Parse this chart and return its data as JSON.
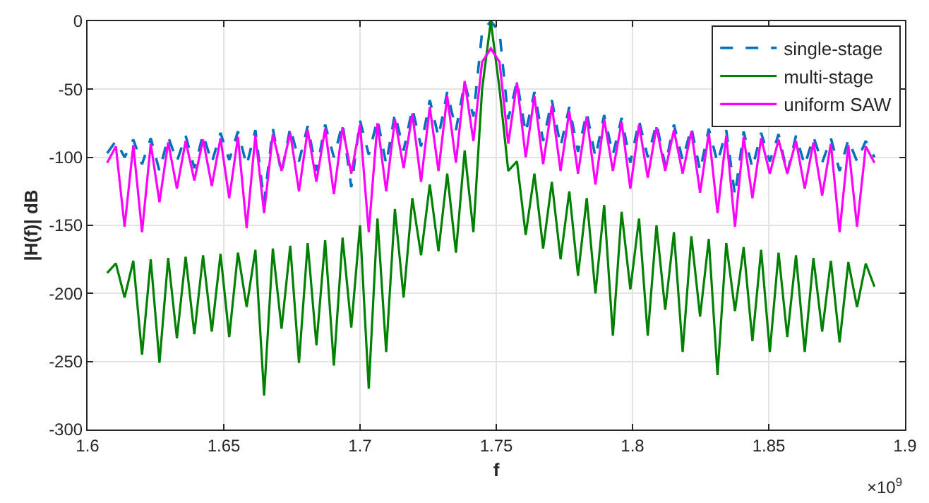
{
  "chart_data": {
    "type": "line",
    "xlabel": "f",
    "ylabel": "|H(f)| dB",
    "annotations": [
      "×10$^{9}$"
    ],
    "xlim": [
      1.6,
      1.9
    ],
    "xticks": [
      1.6,
      1.65,
      1.7,
      1.75,
      1.8,
      1.85,
      1.9
    ],
    "ylim": [
      -300,
      0
    ],
    "yticks": [
      -300,
      -250,
      -200,
      -150,
      -100,
      -50,
      0
    ],
    "grid": true,
    "legend": "top right",
    "marker": "none",
    "x": [
      1.6072,
      1.6104,
      1.6136,
      1.6168,
      1.62,
      1.6232,
      1.6264,
      1.6296,
      1.6328,
      1.636,
      1.6392,
      1.6424,
      1.6456,
      1.6488,
      1.652,
      1.6552,
      1.6584,
      1.6616,
      1.6648,
      1.668,
      1.6712,
      1.6744,
      1.6776,
      1.6808,
      1.684,
      1.6872,
      1.6904,
      1.6936,
      1.6968,
      1.7,
      1.7032,
      1.7064,
      1.7096,
      1.7128,
      1.716,
      1.7192,
      1.7224,
      1.7256,
      1.7288,
      1.732,
      1.7352,
      1.7384,
      1.7416,
      1.7448,
      1.748,
      1.7512,
      1.7544,
      1.7576,
      1.7608,
      1.764,
      1.7672,
      1.7704,
      1.7736,
      1.7768,
      1.78,
      1.7832,
      1.7864,
      1.7896,
      1.7928,
      1.796,
      1.7992,
      1.8024,
      1.8056,
      1.8088,
      1.812,
      1.8152,
      1.8184,
      1.8216,
      1.8248,
      1.828,
      1.8312,
      1.8344,
      1.8376,
      1.8408,
      1.844,
      1.8472,
      1.8504,
      1.8536,
      1.8568,
      1.86,
      1.8632,
      1.8664,
      1.8696,
      1.8728,
      1.876,
      1.8792,
      1.8824,
      1.8856,
      1.8888
    ],
    "series": [
      {
        "name": "single-stage",
        "color": "#0072bd",
        "line_style": "dashed",
        "values": [
          -97,
          -88,
          -100,
          -87,
          -105,
          -86,
          -110,
          -85,
          -103,
          -84,
          -108,
          -83,
          -104,
          -82,
          -102,
          -81,
          -106,
          -80,
          -133,
          -79,
          -112,
          -78,
          -103,
          -77,
          -110,
          -76,
          -100,
          -75,
          -122,
          -73,
          -98,
          -72,
          -105,
          -68,
          -95,
          -64,
          -92,
          -58,
          -85,
          -52,
          -80,
          -45,
          -70,
          -8,
          0,
          -8,
          -72,
          -44,
          -82,
          -52,
          -88,
          -58,
          -92,
          -63,
          -96,
          -67,
          -100,
          -69,
          -98,
          -71,
          -104,
          -73,
          -100,
          -75,
          -106,
          -76,
          -102,
          -78,
          -110,
          -79,
          -104,
          -80,
          -128,
          -81,
          -108,
          -82,
          -103,
          -83,
          -112,
          -84,
          -106,
          -85,
          -104,
          -86,
          -110,
          -87,
          -103,
          -88,
          -100
        ]
      },
      {
        "name": "multi-stage",
        "color": "#008000",
        "line_style": "solid",
        "values": [
          -185,
          -178,
          -203,
          -176,
          -245,
          -175,
          -251,
          -174,
          -233,
          -173,
          -230,
          -172,
          -228,
          -171,
          -232,
          -170,
          -210,
          -168,
          -275,
          -167,
          -226,
          -165,
          -251,
          -163,
          -238,
          -161,
          -253,
          -159,
          -225,
          -150,
          -270,
          -145,
          -243,
          -138,
          -203,
          -130,
          -172,
          -120,
          -169,
          -112,
          -170,
          -95,
          -155,
          -50,
          0,
          -50,
          -110,
          -103,
          -157,
          -112,
          -167,
          -118,
          -175,
          -125,
          -187,
          -130,
          -200,
          -135,
          -231,
          -140,
          -197,
          -145,
          -231,
          -150,
          -212,
          -155,
          -243,
          -158,
          -217,
          -160,
          -260,
          -163,
          -213,
          -166,
          -235,
          -168,
          -243,
          -170,
          -232,
          -172,
          -243,
          -174,
          -228,
          -176,
          -236,
          -177,
          -210,
          -178,
          -195
        ]
      },
      {
        "name": "uniform SAW",
        "color": "#ff00ff",
        "line_style": "solid",
        "values": [
          -104,
          -92,
          -151,
          -91,
          -155,
          -90,
          -133,
          -89,
          -123,
          -88,
          -117,
          -87,
          -121,
          -86,
          -130,
          -85,
          -152,
          -84,
          -141,
          -83,
          -110,
          -82,
          -125,
          -80,
          -118,
          -79,
          -127,
          -78,
          -112,
          -76,
          -155,
          -75,
          -125,
          -72,
          -108,
          -68,
          -118,
          -63,
          -110,
          -55,
          -104,
          -44,
          -88,
          -30,
          -20,
          -30,
          -90,
          -45,
          -100,
          -55,
          -105,
          -62,
          -110,
          -66,
          -112,
          -70,
          -120,
          -72,
          -110,
          -74,
          -123,
          -76,
          -115,
          -78,
          -110,
          -80,
          -112,
          -81,
          -126,
          -82,
          -141,
          -84,
          -151,
          -85,
          -130,
          -86,
          -112,
          -87,
          -112,
          -88,
          -123,
          -89,
          -128,
          -90,
          -155,
          -91,
          -151,
          -92,
          -104
        ]
      }
    ]
  }
}
